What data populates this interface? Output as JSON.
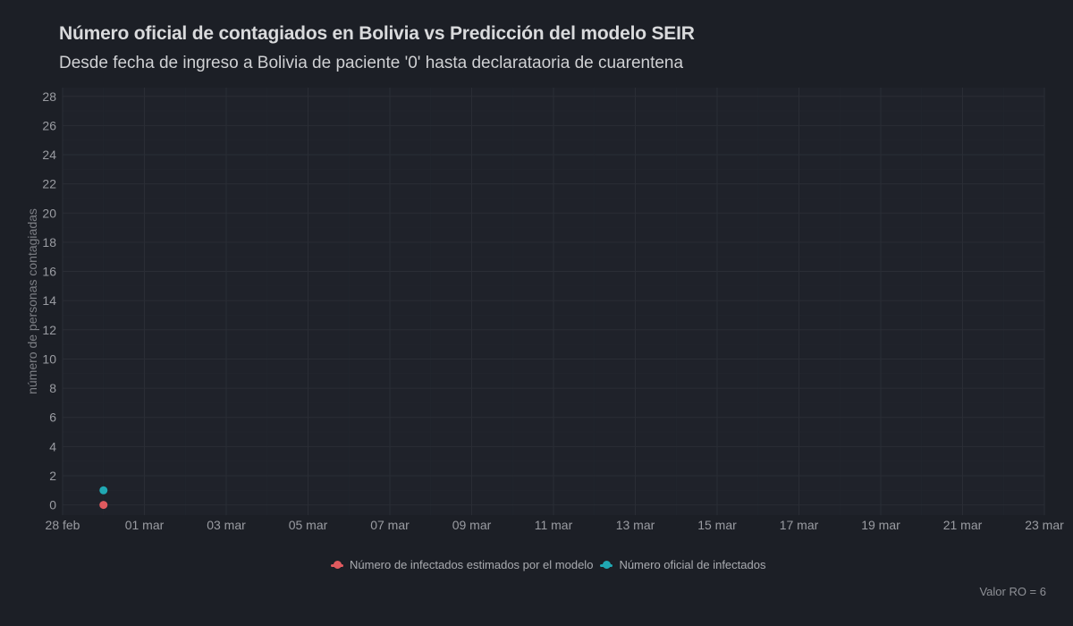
{
  "chart_data": {
    "type": "scatter",
    "title": "Número oficial de contagiados en Bolivia vs Predicción del modelo SEIR",
    "subtitle": "Desde fecha de ingreso a Bolivia de paciente '0' hasta declarataoria de cuarentena",
    "xlabel": "",
    "ylabel": "número de personas contagiadas",
    "x_ticks": [
      "28 feb",
      "01 mar",
      "03 mar",
      "05 mar",
      "07 mar",
      "09 mar",
      "11 mar",
      "13 mar",
      "15 mar",
      "17 mar",
      "19 mar",
      "21 mar",
      "23 mar"
    ],
    "x_tick_dates": [
      "2020-02-28",
      "2020-03-01",
      "2020-03-03",
      "2020-03-05",
      "2020-03-07",
      "2020-03-09",
      "2020-03-11",
      "2020-03-13",
      "2020-03-15",
      "2020-03-17",
      "2020-03-19",
      "2020-03-21",
      "2020-03-23"
    ],
    "xlim": [
      "2020-02-28",
      "2020-03-23"
    ],
    "y_ticks": [
      0,
      2,
      4,
      6,
      8,
      10,
      12,
      14,
      16,
      18,
      20,
      22,
      24,
      26,
      28
    ],
    "ylim": [
      -0.7,
      28.6
    ],
    "grid": true,
    "legend_position": "bottom",
    "series": [
      {
        "name": "Número de infectados estimados por el modelo",
        "color": "#e05a5f",
        "points": [
          {
            "x": "2020-02-29",
            "y": 0
          }
        ]
      },
      {
        "name": "Número oficial de infectados",
        "color": "#20a8b3",
        "points": [
          {
            "x": "2020-02-29",
            "y": 1
          }
        ]
      }
    ],
    "caption": "Valor RO = 6"
  }
}
